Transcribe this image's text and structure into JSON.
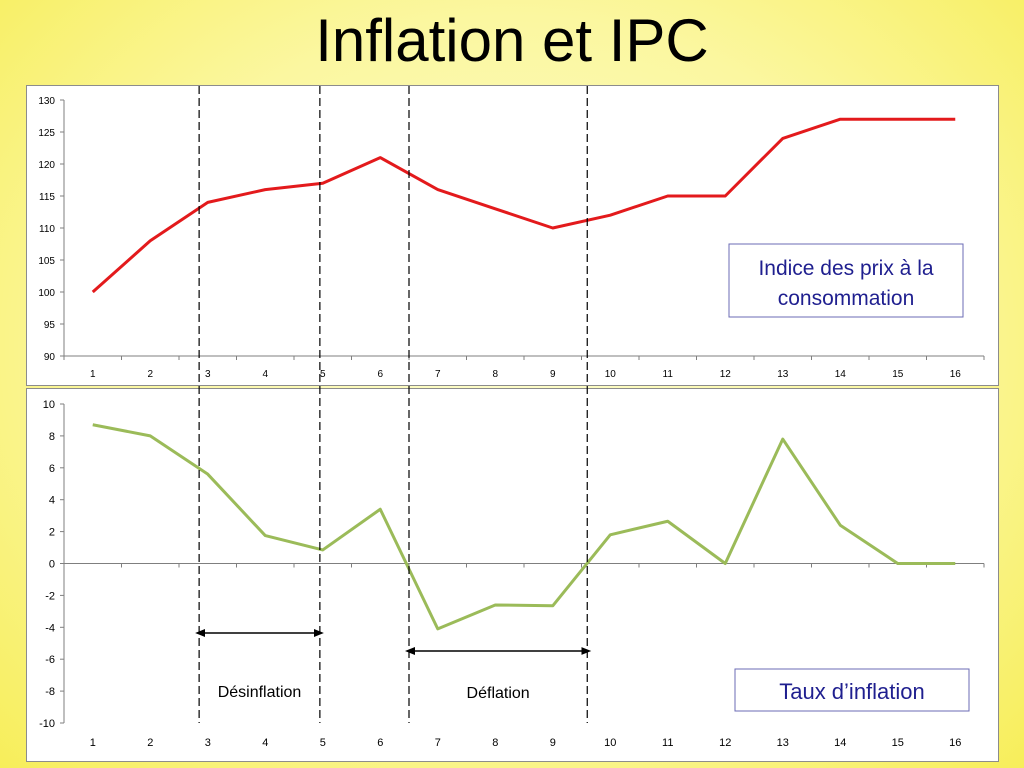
{
  "title": "Inflation et IPC",
  "colors": {
    "ipc": "#e31a1c",
    "inflation": "#9bbb59",
    "legend_text": "#1f1f8f",
    "legend_border": "#6b6bb5"
  },
  "chart_data": [
    {
      "type": "line",
      "x": [
        1,
        2,
        3,
        4,
        5,
        6,
        7,
        8,
        9,
        10,
        11,
        12,
        13,
        14,
        15,
        16
      ],
      "series": [
        {
          "name": "Indice des prix à la consommation",
          "values": [
            100,
            108,
            114,
            116,
            117,
            121,
            116,
            113,
            110,
            112,
            115,
            115,
            124,
            127,
            127,
            127
          ]
        }
      ],
      "ylim": [
        90,
        130
      ],
      "yticks": [
        90,
        95,
        100,
        105,
        110,
        115,
        120,
        125,
        130
      ],
      "legend_lines": [
        "Indice des prix à la",
        "consommation"
      ],
      "legend_position": "right"
    },
    {
      "type": "line",
      "x": [
        1,
        2,
        3,
        4,
        5,
        6,
        7,
        8,
        9,
        10,
        11,
        12,
        13,
        14,
        15,
        16
      ],
      "series": [
        {
          "name": "Taux d’inflation",
          "values": [
            8.7,
            8.0,
            5.6,
            1.75,
            0.85,
            3.4,
            -4.1,
            -2.6,
            -2.65,
            1.8,
            2.65,
            0,
            7.8,
            2.4,
            0,
            0
          ]
        }
      ],
      "ylim": [
        -10,
        10
      ],
      "yticks": [
        -10,
        -8,
        -6,
        -4,
        -2,
        0,
        2,
        4,
        6,
        8,
        10
      ],
      "legend_lines": [
        "Taux d’inflation"
      ],
      "legend_position": "bottom-right"
    }
  ],
  "annotations": {
    "vlines_at_x": [
      2.85,
      4.95,
      6.5,
      9.6
    ],
    "desinflation": {
      "label": "Désinflation",
      "from": 2.85,
      "to": 4.95
    },
    "deflation": {
      "label": "Déflation",
      "from": 6.5,
      "to": 9.6
    }
  }
}
